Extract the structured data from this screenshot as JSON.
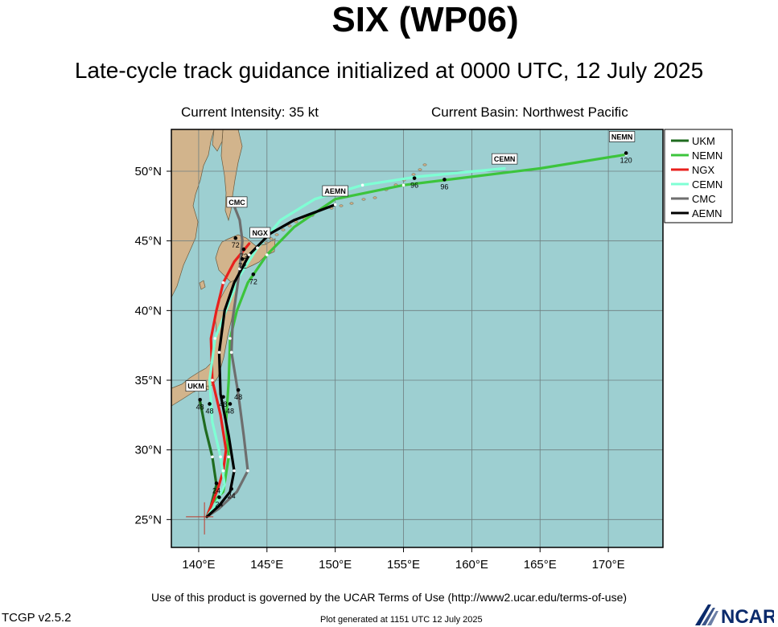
{
  "header": {
    "title": "SIX (WP06)",
    "subtitle": "Late-cycle track guidance initialized at 0000 UTC, 12 July 2025",
    "intensity": "Current Intensity: 35 kt",
    "basin": "Current Basin: Northwest Pacific"
  },
  "footer": {
    "terms": "Use of this product is governed by the UCAR Terms of Use (http://www2.ucar.edu/terms-of-use)",
    "version": "TCGP v2.5.2",
    "generated": "Plot generated at 1151 UTC   12 July 2025",
    "logo_text": "NCAR"
  },
  "colors": {
    "ocean": "#9dcfd1",
    "land": "#d2b48c",
    "grid": "#6f7f80"
  },
  "map": {
    "lon_range": [
      138,
      174
    ],
    "lat_range": [
      23,
      53
    ],
    "lon_ticks": [
      {
        "value": 140,
        "label": "140°E"
      },
      {
        "value": 145,
        "label": "145°E"
      },
      {
        "value": 150,
        "label": "150°E"
      },
      {
        "value": 155,
        "label": "155°E"
      },
      {
        "value": 160,
        "label": "160°E"
      },
      {
        "value": 165,
        "label": "165°E"
      },
      {
        "value": 170,
        "label": "170°E"
      }
    ],
    "lat_ticks": [
      {
        "value": 25,
        "label": "25°N"
      },
      {
        "value": 30,
        "label": "30°N"
      },
      {
        "value": 35,
        "label": "35°N"
      },
      {
        "value": 40,
        "label": "40°N"
      },
      {
        "value": 45,
        "label": "45°N"
      },
      {
        "value": 50,
        "label": "50°N"
      }
    ],
    "current_position": {
      "lon": 140.6,
      "lat": 25.2
    }
  },
  "chart_data": {
    "type": "line",
    "title": "SIX (WP06)",
    "legend_placement": "right",
    "series": [
      {
        "name": "UKM",
        "color": "#1f6b1f",
        "track": [
          [
            140.6,
            25.2
          ],
          [
            140.9,
            26.0
          ],
          [
            141.3,
            27.5
          ],
          [
            141.0,
            29.5
          ],
          [
            140.5,
            31.5
          ],
          [
            140.1,
            33.5
          ]
        ],
        "points": [
          {
            "lon": 141.3,
            "lat": 27.6,
            "label": "24"
          },
          {
            "lon": 140.1,
            "lat": 33.6,
            "label": "48"
          }
        ],
        "end_label": "UKM",
        "end_label_at": {
          "lon": 139.8,
          "lat": 34.5
        }
      },
      {
        "name": "NEMN",
        "color": "#3cc43c",
        "track": [
          [
            140.6,
            25.2
          ],
          [
            141.0,
            26.2
          ],
          [
            141.8,
            27.0
          ],
          [
            142.2,
            29.5
          ],
          [
            142.0,
            32.0
          ],
          [
            142.2,
            35.0
          ],
          [
            142.3,
            38.0
          ],
          [
            142.8,
            40.0
          ],
          [
            143.6,
            42.0
          ],
          [
            145.0,
            44.0
          ],
          [
            147.0,
            46.0
          ],
          [
            150.0,
            48.0
          ],
          [
            155.0,
            49.0
          ],
          [
            160.0,
            49.6
          ],
          [
            165.0,
            50.2
          ],
          [
            171.3,
            51.2
          ]
        ],
        "points": [
          {
            "lon": 142.3,
            "lat": 33.3,
            "label": "48"
          },
          {
            "lon": 144.0,
            "lat": 42.6,
            "label": "72"
          },
          {
            "lon": 158.0,
            "lat": 49.4,
            "label": "96"
          },
          {
            "lon": 171.3,
            "lat": 51.3,
            "label": "120"
          }
        ],
        "end_label": "NEMN",
        "end_label_at": {
          "lon": 171.0,
          "lat": 52.4
        }
      },
      {
        "name": "NGX",
        "color": "#e8201d",
        "track": [
          [
            140.6,
            25.2
          ],
          [
            141.0,
            26.2
          ],
          [
            141.4,
            27.2
          ],
          [
            141.8,
            28.5
          ],
          [
            142.0,
            30.0
          ],
          [
            141.6,
            32.5
          ],
          [
            141.0,
            35.0
          ],
          [
            140.9,
            38.0
          ],
          [
            141.3,
            40.0
          ],
          [
            141.8,
            42.0
          ],
          [
            142.6,
            43.5
          ],
          [
            143.7,
            44.8
          ]
        ],
        "points": [
          {
            "lon": 141.5,
            "lat": 26.6,
            "label": "24"
          },
          {
            "lon": 140.8,
            "lat": 33.3,
            "label": "48"
          },
          {
            "lon": 143.3,
            "lat": 44.4,
            "label": "72"
          }
        ],
        "end_label": "NGX",
        "end_label_at": {
          "lon": 144.5,
          "lat": 45.5
        }
      },
      {
        "name": "CEMN",
        "color": "#7fffd4",
        "track": [
          [
            140.6,
            25.2
          ],
          [
            141.2,
            26.0
          ],
          [
            141.9,
            27.5
          ],
          [
            141.6,
            29.5
          ],
          [
            141.0,
            32.0
          ],
          [
            140.8,
            35.0
          ],
          [
            141.2,
            38.0
          ],
          [
            142.0,
            40.0
          ],
          [
            143.0,
            42.5
          ],
          [
            144.3,
            44.5
          ],
          [
            146.0,
            46.5
          ],
          [
            148.5,
            48.0
          ],
          [
            152.0,
            49.0
          ],
          [
            156.0,
            49.6
          ],
          [
            162.4,
            50.2
          ]
        ],
        "points": [
          {
            "lon": 155.8,
            "lat": 49.5,
            "label": "96"
          }
        ],
        "end_label": "CEMN",
        "end_label_at": {
          "lon": 162.4,
          "lat": 50.8
        }
      },
      {
        "name": "CMC",
        "color": "#6e6e6e",
        "track": [
          [
            140.6,
            25.2
          ],
          [
            141.5,
            25.8
          ],
          [
            142.8,
            27.0
          ],
          [
            143.6,
            28.5
          ],
          [
            143.3,
            31.0
          ],
          [
            142.9,
            34.0
          ],
          [
            142.4,
            37.0
          ],
          [
            142.5,
            39.5
          ],
          [
            142.8,
            41.5
          ],
          [
            143.0,
            43.0
          ],
          [
            143.2,
            45.0
          ],
          [
            143.0,
            46.5
          ],
          [
            142.6,
            47.5
          ]
        ],
        "points": [
          {
            "lon": 142.9,
            "lat": 34.3,
            "label": "48"
          },
          {
            "lon": 142.7,
            "lat": 45.2,
            "label": "72"
          }
        ],
        "end_label": "CMC",
        "end_label_at": {
          "lon": 142.8,
          "lat": 47.7
        }
      },
      {
        "name": "AEMN",
        "color": "#000000",
        "track": [
          [
            140.6,
            25.2
          ],
          [
            141.5,
            26.0
          ],
          [
            142.3,
            27.0
          ],
          [
            142.6,
            28.5
          ],
          [
            142.2,
            31.0
          ],
          [
            141.6,
            34.0
          ],
          [
            141.5,
            37.0
          ],
          [
            141.9,
            40.0
          ],
          [
            142.6,
            42.0
          ],
          [
            143.7,
            44.0
          ],
          [
            145.2,
            45.5
          ],
          [
            147.0,
            46.5
          ],
          [
            150.0,
            47.6
          ]
        ],
        "points": [
          {
            "lon": 142.4,
            "lat": 27.2,
            "label": "24"
          },
          {
            "lon": 141.8,
            "lat": 33.8,
            "label": "48"
          },
          {
            "lon": 143.2,
            "lat": 43.7,
            "label": "72"
          }
        ],
        "end_label": "AEMN",
        "end_label_at": {
          "lon": 150.0,
          "lat": 48.5
        }
      }
    ]
  }
}
